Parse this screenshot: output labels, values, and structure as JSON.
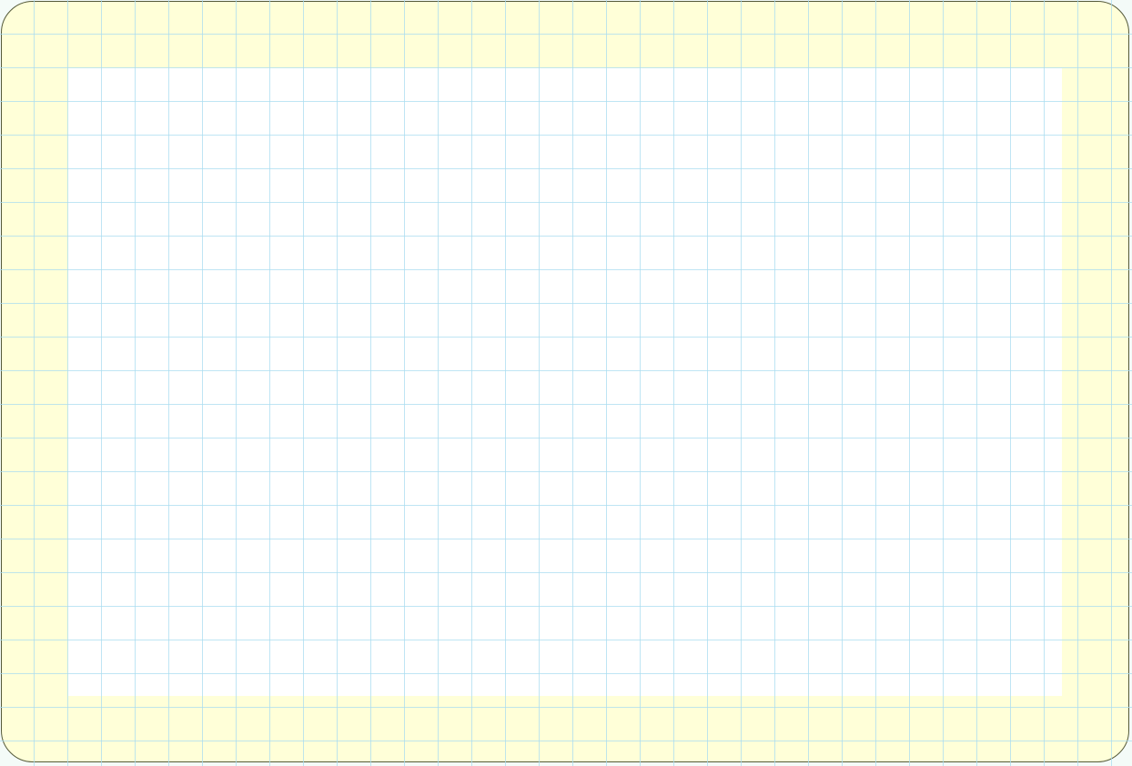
{
  "colors": {
    "margin_background": "#ffffd8",
    "inner_background": "#ffffff",
    "grid_line": "#a9dcf0",
    "border": "#555a3a"
  },
  "grid": {
    "cells_across": 33,
    "cells_down": 22
  }
}
